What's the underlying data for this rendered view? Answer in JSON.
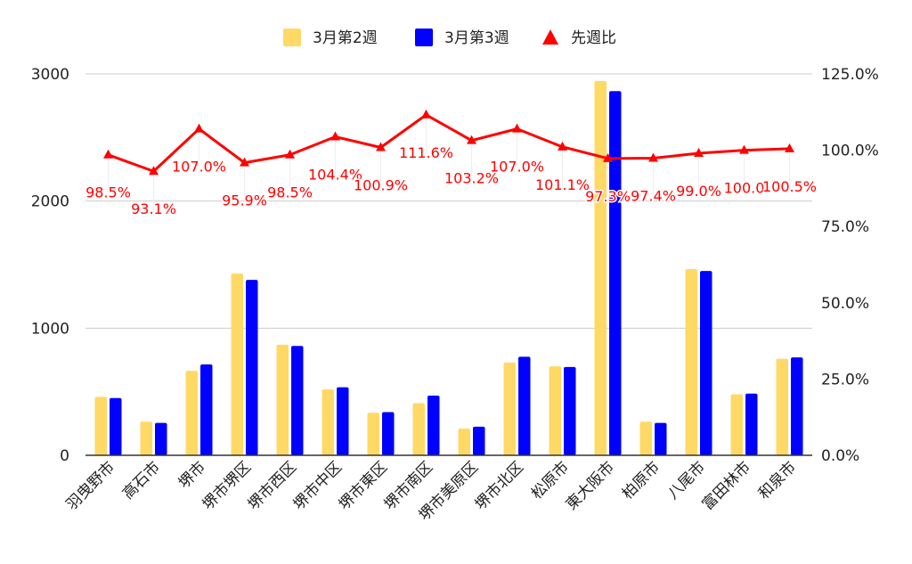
{
  "chart_data": {
    "type": "bar",
    "title": "",
    "xlabel": "",
    "ylabel": "",
    "categories": [
      "羽曳野市",
      "高石市",
      "堺市",
      "堺市堺区",
      "堺市西区",
      "堺市中区",
      "堺市東区",
      "堺市南区",
      "堺市美原区",
      "堺市北区",
      "松原市",
      "東大阪市",
      "柏原市",
      "八尾市",
      "富田林市",
      "和泉市"
    ],
    "series": [
      {
        "name": "3月第2週",
        "type": "bar",
        "color": "#FFD966",
        "axis": "left",
        "values": [
          460,
          265,
          665,
          1430,
          870,
          520,
          335,
          410,
          210,
          730,
          700,
          2945,
          265,
          1465,
          480,
          760
        ]
      },
      {
        "name": "3月第3週",
        "type": "bar",
        "color": "#0000FF",
        "axis": "left",
        "values": [
          450,
          255,
          715,
          1380,
          860,
          535,
          340,
          470,
          225,
          775,
          695,
          2865,
          255,
          1450,
          485,
          770
        ]
      },
      {
        "name": "先週比",
        "type": "line",
        "color": "#FF0000",
        "axis": "right",
        "marker": "triangle",
        "values": [
          98.5,
          93.1,
          107.0,
          95.9,
          98.5,
          104.4,
          100.9,
          111.6,
          103.2,
          107.0,
          101.1,
          97.3,
          97.4,
          99.0,
          100.0,
          100.5
        ],
        "labels": [
          "98.5%",
          "93.1%",
          "107.0%",
          "95.9%",
          "98.5%",
          "104.4%",
          "100.9%",
          "111.6%",
          "103.2%",
          "107.0%",
          "101.1%",
          "97.3%",
          "97.4%",
          "99.0%",
          "100.0",
          "100.5%"
        ]
      }
    ],
    "ylim_left": [
      0,
      3000
    ],
    "yticks_left": [
      "0",
      "1000",
      "2000",
      "3000"
    ],
    "ylim_right": [
      0,
      125
    ],
    "yticks_right": [
      "0.0%",
      "25.0%",
      "50.0%",
      "75.0%",
      "100.0%",
      "125.0%"
    ],
    "legend_position": "top-center",
    "grid": true
  }
}
